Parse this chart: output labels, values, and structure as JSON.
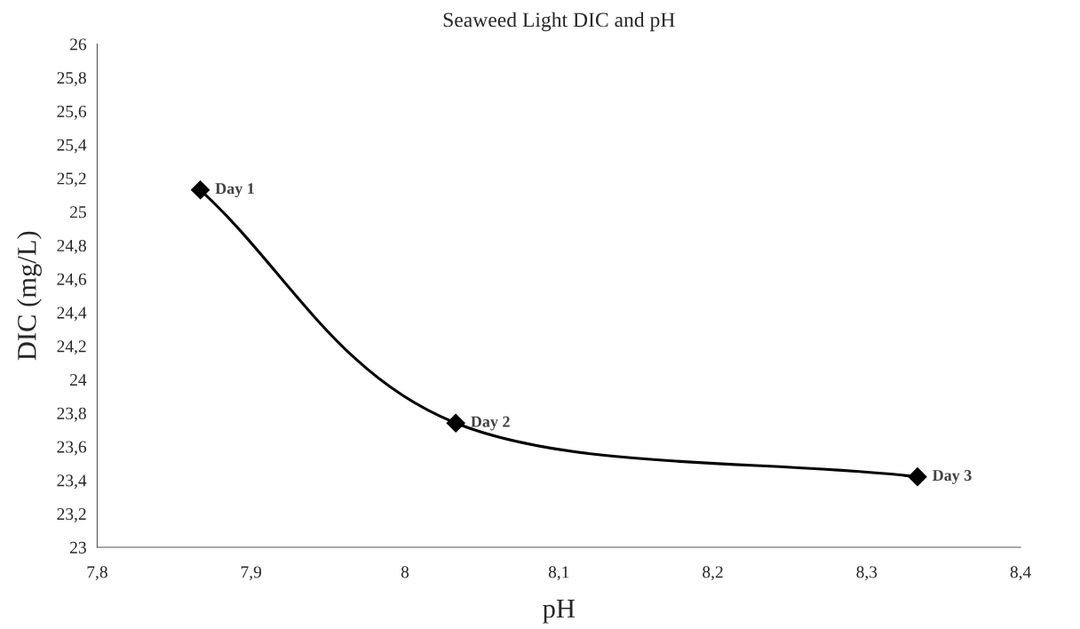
{
  "chart_data": {
    "type": "line",
    "title": "Seaweed Light DIC and pH",
    "xlabel": "pH",
    "ylabel": "DIC (mg/L)",
    "x": [
      7.867,
      8.033,
      8.333
    ],
    "series": [
      {
        "color": "#000000",
        "values": [
          25.13,
          23.74,
          23.42
        ]
      }
    ],
    "marker": "diamond",
    "line_style": "solid",
    "grid": false,
    "xlim": [
      7.8,
      8.4
    ],
    "xticks": [
      {
        "value": 7.8,
        "label": "7,8"
      },
      {
        "value": 7.9,
        "label": "7,9"
      },
      8,
      {
        "value": 8.1,
        "label": "8,1"
      },
      {
        "value": 8.2,
        "label": "8,2"
      },
      {
        "value": 8.3,
        "label": "8,3"
      },
      {
        "value": 8.4,
        "label": "8,4"
      }
    ],
    "ylim": [
      23,
      26
    ],
    "yticks": [
      23,
      {
        "value": 23.2,
        "label": "23,2"
      },
      {
        "value": 23.4,
        "label": "23,4"
      },
      {
        "value": 23.6,
        "label": "23,6"
      },
      {
        "value": 23.8,
        "label": "23,8"
      },
      24,
      {
        "value": 24.2,
        "label": "24,2"
      },
      {
        "value": 24.4,
        "label": "24,4"
      },
      {
        "value": 24.6,
        "label": "24,6"
      },
      {
        "value": 24.8,
        "label": "24,8"
      },
      25,
      {
        "value": 25.2,
        "label": "25,2"
      },
      {
        "value": 25.4,
        "label": "25,4"
      },
      {
        "value": 25.6,
        "label": "25,6"
      },
      {
        "value": 25.8,
        "label": "25,8"
      },
      26
    ],
    "annotations": [
      {
        "text": "Day 1",
        "x": 7.867,
        "y": 25.13
      },
      {
        "text": "Day 2",
        "x": 8.033,
        "y": 23.74
      },
      {
        "text": "Day 3",
        "x": 8.333,
        "y": 23.42
      }
    ]
  }
}
